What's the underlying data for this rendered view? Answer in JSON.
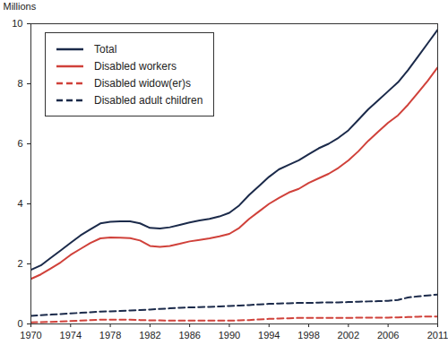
{
  "chart_data": {
    "type": "line",
    "ylabel": "Millions",
    "x": [
      1970,
      1971,
      1972,
      1973,
      1974,
      1975,
      1976,
      1977,
      1978,
      1979,
      1980,
      1981,
      1982,
      1983,
      1984,
      1985,
      1986,
      1987,
      1988,
      1989,
      1990,
      1991,
      1992,
      1993,
      1994,
      1995,
      1996,
      1997,
      1998,
      1999,
      2000,
      2001,
      2002,
      2003,
      2004,
      2005,
      2006,
      2007,
      2008,
      2009,
      2010,
      2011
    ],
    "series": [
      {
        "name": "Total",
        "color": "#1b2a4a",
        "line_style": "solid",
        "values": [
          1.8,
          1.95,
          2.2,
          2.45,
          2.7,
          2.95,
          3.15,
          3.35,
          3.4,
          3.42,
          3.42,
          3.35,
          3.2,
          3.18,
          3.22,
          3.3,
          3.38,
          3.45,
          3.5,
          3.58,
          3.7,
          3.95,
          4.3,
          4.6,
          4.9,
          5.15,
          5.3,
          5.45,
          5.65,
          5.85,
          6.0,
          6.2,
          6.45,
          6.8,
          7.15,
          7.45,
          7.75,
          8.05,
          8.45,
          8.9,
          9.35,
          9.8
        ]
      },
      {
        "name": "Disabled workers",
        "color": "#d0413a",
        "line_style": "solid",
        "values": [
          1.5,
          1.65,
          1.85,
          2.05,
          2.3,
          2.5,
          2.7,
          2.85,
          2.88,
          2.87,
          2.86,
          2.78,
          2.6,
          2.57,
          2.6,
          2.67,
          2.75,
          2.8,
          2.85,
          2.92,
          3.0,
          3.2,
          3.5,
          3.75,
          4.0,
          4.2,
          4.38,
          4.5,
          4.7,
          4.85,
          5.0,
          5.2,
          5.45,
          5.75,
          6.1,
          6.4,
          6.7,
          6.95,
          7.3,
          7.7,
          8.1,
          8.55
        ]
      },
      {
        "name": "Disabled widow(er)s",
        "color": "#d0413a",
        "line_style": "dashed",
        "values": [
          0.05,
          0.06,
          0.07,
          0.08,
          0.1,
          0.11,
          0.13,
          0.14,
          0.14,
          0.14,
          0.14,
          0.13,
          0.12,
          0.12,
          0.11,
          0.11,
          0.11,
          0.11,
          0.11,
          0.11,
          0.11,
          0.12,
          0.13,
          0.15,
          0.17,
          0.18,
          0.19,
          0.2,
          0.2,
          0.2,
          0.2,
          0.2,
          0.2,
          0.21,
          0.21,
          0.21,
          0.21,
          0.22,
          0.23,
          0.24,
          0.25,
          0.25
        ]
      },
      {
        "name": "Disabled adult children",
        "color": "#1b2a4a",
        "line_style": "dashed",
        "values": [
          0.27,
          0.29,
          0.31,
          0.33,
          0.35,
          0.37,
          0.39,
          0.41,
          0.42,
          0.43,
          0.45,
          0.46,
          0.48,
          0.5,
          0.52,
          0.54,
          0.55,
          0.56,
          0.57,
          0.58,
          0.6,
          0.61,
          0.63,
          0.65,
          0.67,
          0.68,
          0.69,
          0.7,
          0.7,
          0.71,
          0.72,
          0.72,
          0.73,
          0.74,
          0.75,
          0.76,
          0.77,
          0.8,
          0.88,
          0.92,
          0.95,
          0.98
        ]
      }
    ],
    "xlim": [
      1970,
      2011
    ],
    "xticks": [
      1970,
      1974,
      1978,
      1982,
      1986,
      1990,
      1994,
      1998,
      2002,
      2006,
      2011
    ],
    "ylim": [
      0,
      10
    ],
    "yticks": [
      0,
      2,
      4,
      6,
      8,
      10
    ],
    "grid": false,
    "legend": "top-left"
  }
}
